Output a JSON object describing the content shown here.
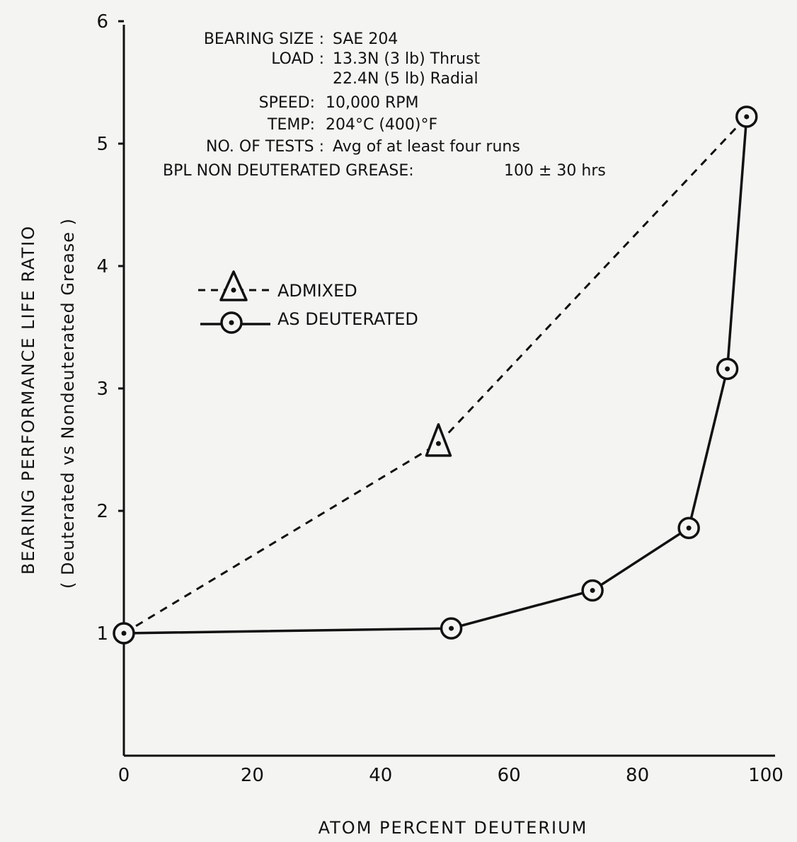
{
  "chart_data": {
    "type": "line",
    "xlabel": "ATOM PERCENT DEUTERIUM",
    "ylabel": "BEARING   PERFORMANCE LIFE RATIO",
    "ylabel_sub": "( Deuterated vs Nondeuterated Grease )",
    "xlim": [
      0,
      100
    ],
    "ylim": [
      0,
      6
    ],
    "x_ticks": [
      0,
      20,
      40,
      60,
      80,
      100
    ],
    "x_tick_labels": [
      "0",
      "20",
      "40",
      "60",
      "80",
      "100"
    ],
    "y_ticks": [
      1,
      2,
      3,
      4,
      5,
      6
    ],
    "y_tick_labels": [
      "1",
      "2",
      "3",
      "4",
      "5",
      "6"
    ],
    "grid": false,
    "legend_position": "center-left",
    "series": [
      {
        "name": "ADMIXED",
        "line_style": "dashed",
        "marker": "triangle-dot",
        "x": [
          0,
          49,
          97
        ],
        "y": [
          1.0,
          2.55,
          5.22
        ]
      },
      {
        "name": "AS DEUTERATED",
        "line_style": "solid",
        "marker": "circle-dot",
        "x": [
          0,
          51,
          73,
          88,
          94,
          97
        ],
        "y": [
          1.0,
          1.04,
          1.35,
          1.86,
          3.16,
          5.22
        ]
      }
    ],
    "annotations": [
      {
        "label": "BEARING SIZE :",
        "value": "SAE 204"
      },
      {
        "label": "LOAD :",
        "value": "13.3N (3 lb)  Thrust"
      },
      {
        "label": "",
        "value": "22.4N (5 lb)  Radial"
      },
      {
        "label": "SPEED:",
        "value": "10,000  RPM"
      },
      {
        "label": "TEMP:",
        "value": "204°C  (400)°F"
      },
      {
        "label": "NO. OF TESTS :",
        "value": "Avg of at least four runs"
      },
      {
        "label": "BPL  NON DEUTERATED GREASE:",
        "value": "100 ± 30 hrs"
      }
    ]
  }
}
